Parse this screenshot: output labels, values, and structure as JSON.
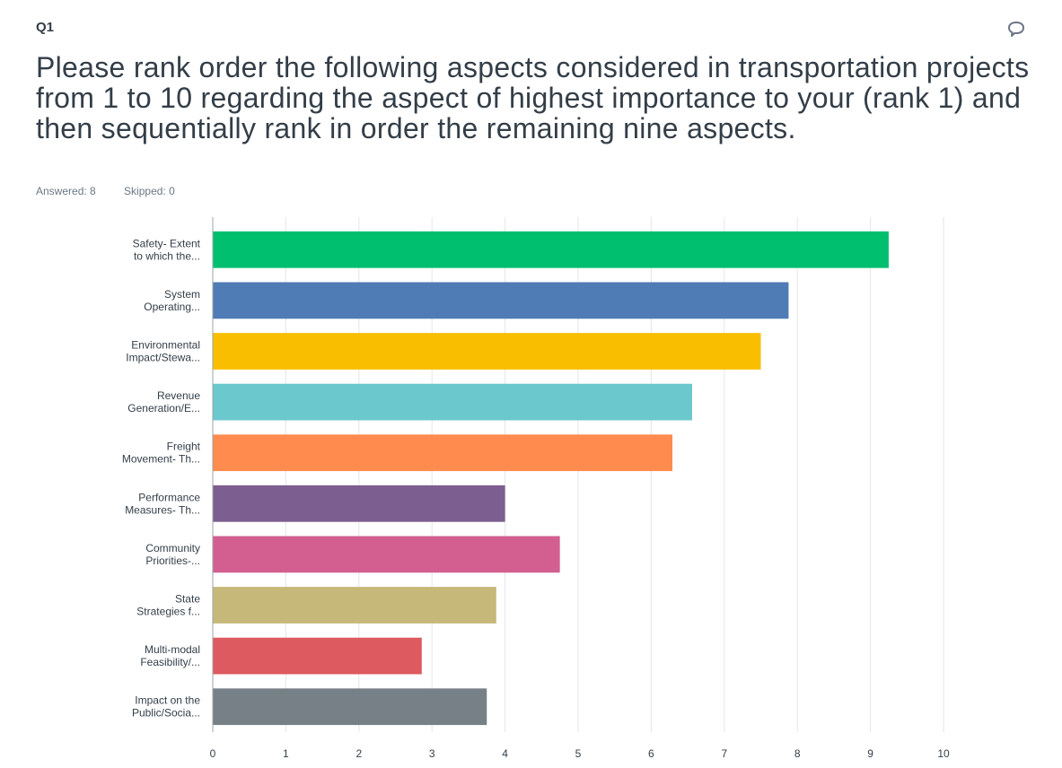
{
  "header": {
    "question_number": "Q1",
    "question_text": "Please rank order the following aspects considered in transportation projects from 1 to 10 regarding the aspect of highest importance to your (rank 1) and then sequentially rank in order the remaining nine aspects.",
    "answered_label": "Answered: 8",
    "skipped_label": "Skipped: 0",
    "comment_icon": "comment-bubble-icon"
  },
  "chart_data": {
    "type": "bar",
    "orientation": "horizontal",
    "categories": [
      [
        "Safety- Extent",
        "to which the..."
      ],
      [
        "System",
        "Operating..."
      ],
      [
        "Environmental",
        "Impact/Stewa..."
      ],
      [
        "Revenue",
        "Generation/E..."
      ],
      [
        "Freight",
        "Movement- Th..."
      ],
      [
        "Performance",
        "Measures- Th..."
      ],
      [
        "Community",
        "Priorities-..."
      ],
      [
        "State",
        "Strategies f..."
      ],
      [
        "Multi-modal",
        "Feasibility/..."
      ],
      [
        "Impact on the",
        "Public/Socia..."
      ]
    ],
    "values": [
      9.25,
      7.88,
      7.5,
      6.56,
      6.29,
      4.0,
      4.75,
      3.88,
      2.86,
      3.75
    ],
    "colors": [
      "#00bf6f",
      "#507cb6",
      "#f9be00",
      "#6bc8cd",
      "#ff8b4f",
      "#7d5e90",
      "#d25f90",
      "#c6b879",
      "#dd5a60",
      "#768086"
    ],
    "xlim": [
      0,
      10
    ],
    "xticks": [
      "0",
      "1",
      "2",
      "3",
      "4",
      "5",
      "6",
      "7",
      "8",
      "9",
      "10"
    ],
    "grid": true
  }
}
